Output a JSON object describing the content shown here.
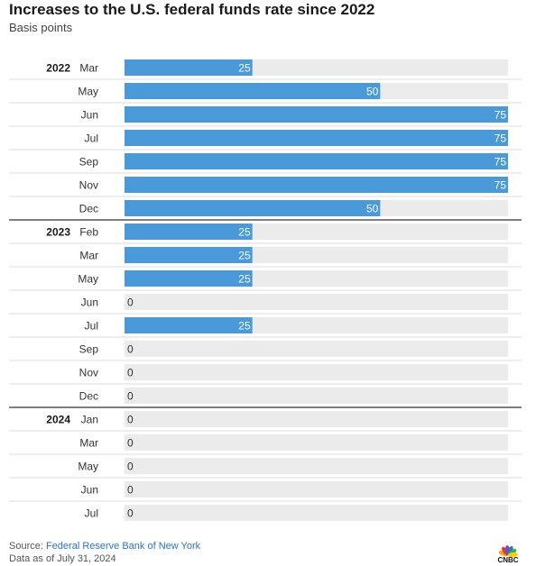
{
  "chart_data": {
    "type": "bar",
    "orientation": "horizontal",
    "title": "Increases to the U.S. federal funds rate since 2022",
    "subtitle": "Basis points",
    "groups": [
      {
        "year": "2022",
        "months": [
          "Mar",
          "May",
          "Jun",
          "Jul",
          "Sep",
          "Nov",
          "Dec"
        ],
        "values": [
          25,
          50,
          75,
          75,
          75,
          75,
          50
        ]
      },
      {
        "year": "2023",
        "months": [
          "Feb",
          "Mar",
          "May",
          "Jun",
          "Jul",
          "Sep",
          "Nov",
          "Dec"
        ],
        "values": [
          25,
          25,
          25,
          0,
          25,
          0,
          0,
          0
        ]
      },
      {
        "year": "2024",
        "months": [
          "Jan",
          "Mar",
          "May",
          "Jun",
          "Jul"
        ],
        "values": [
          0,
          0,
          0,
          0,
          0
        ]
      }
    ],
    "xlim": [
      0,
      75
    ],
    "bar_color": "#4a9ad9",
    "track_color": "#ebebeb",
    "label_color_inside": "#ffffff",
    "label_color_outside": "#333333"
  },
  "footer": {
    "source_prefix": "Source: ",
    "source_name": "Federal Reserve Bank of New York",
    "data_note": "Data as of July 31, 2024"
  },
  "logo": {
    "icon": "peacock-icon",
    "text": "CNBC",
    "colors": [
      "#f5a623",
      "#e8372e",
      "#8e44ad",
      "#2a73c7",
      "#2bb24c",
      "#ffcc00"
    ]
  }
}
